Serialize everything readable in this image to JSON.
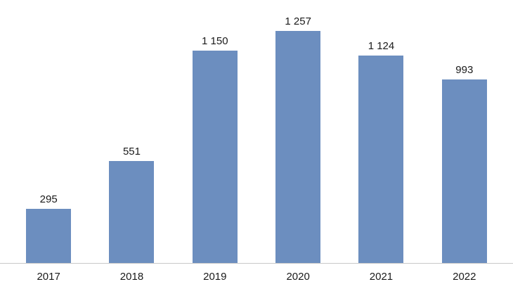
{
  "chart_data": {
    "type": "bar",
    "categories": [
      "2017",
      "2018",
      "2019",
      "2020",
      "2021",
      "2022"
    ],
    "values": [
      295,
      551,
      1150,
      1257,
      1124,
      993
    ],
    "value_labels": [
      "295",
      "551",
      "1 150",
      "1 257",
      "1 124",
      "993"
    ],
    "title": "",
    "xlabel": "",
    "ylabel": "",
    "ylim": [
      0,
      1300
    ],
    "bar_color": "#6C8EBF",
    "axis_line_color": "#C9C9C9",
    "text_color": "#1A1A1A",
    "grid": false,
    "legend": "none",
    "data_labels": "above-bars",
    "thousands_separator": "space"
  }
}
